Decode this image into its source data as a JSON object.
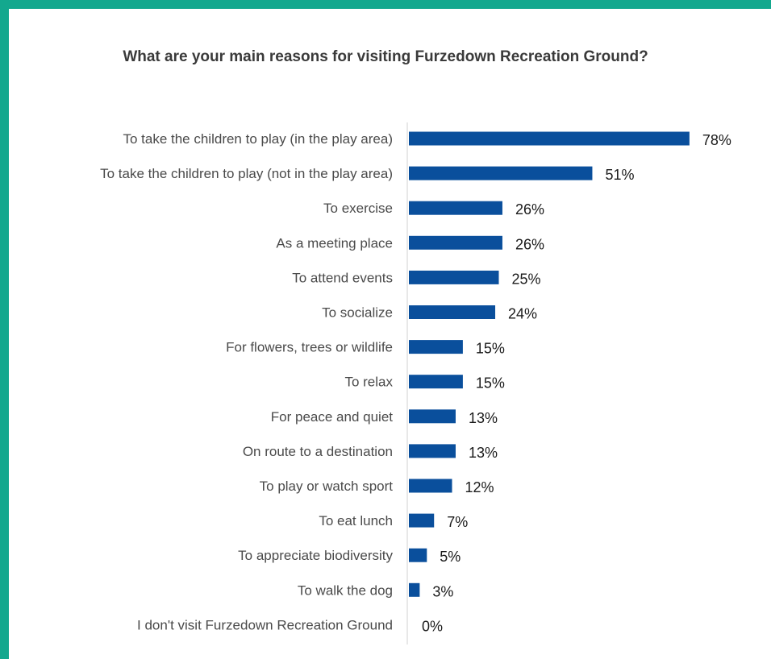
{
  "chart_data": {
    "type": "bar",
    "orientation": "horizontal",
    "title": "What are your main reasons for visiting Furzedown Recreation Ground?",
    "categories": [
      "To take the children to play (in the play area)",
      "To take the children to play (not in the play area)",
      "To exercise",
      "As a meeting place",
      "To attend events",
      "To socialize",
      "For flowers, trees or wildlife",
      "To relax",
      "For peace and quiet",
      "On route to a destination",
      "To play or watch sport",
      "To eat lunch",
      "To appreciate biodiversity",
      "To walk the dog",
      "I don't visit Furzedown Recreation Ground"
    ],
    "values": [
      78,
      51,
      26,
      26,
      25,
      24,
      15,
      15,
      13,
      13,
      12,
      7,
      5,
      3,
      0
    ],
    "value_labels": [
      "78%",
      "51%",
      "26%",
      "26%",
      "25%",
      "24%",
      "15%",
      "15%",
      "13%",
      "13%",
      "12%",
      "7%",
      "5%",
      "3%",
      "0%"
    ],
    "unit": "%",
    "xlim": [
      0,
      100
    ],
    "grid": false,
    "legend": "none",
    "bar_color": "#0a4f9c"
  }
}
